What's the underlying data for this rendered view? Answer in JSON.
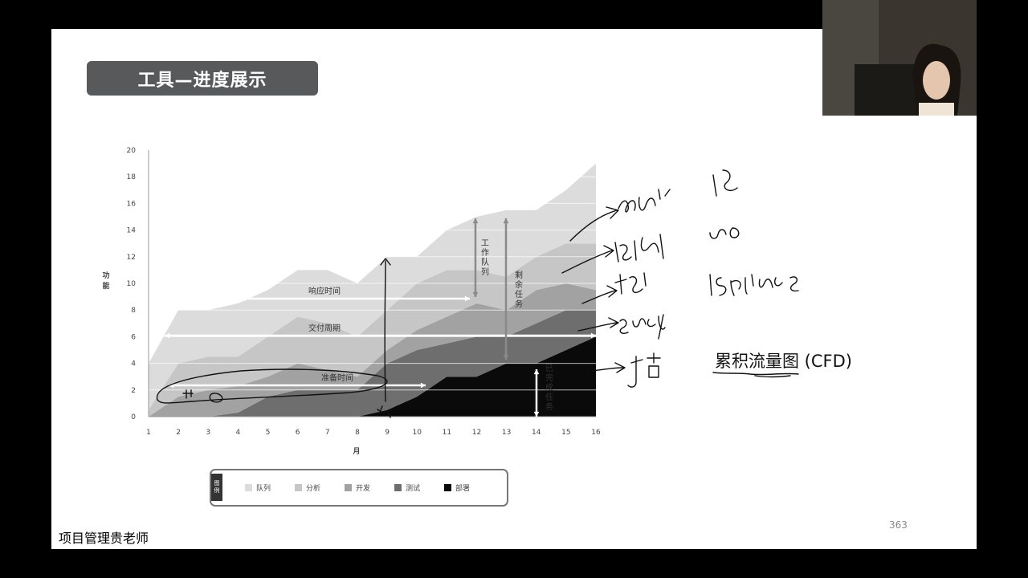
{
  "slide": {
    "title": "工具—进度展示",
    "cfd_label": "累积流量图 (CFD)",
    "page_number": "363",
    "footer": "项目管理贵老师"
  },
  "chart_data": {
    "type": "area",
    "stacked": true,
    "x": [
      1,
      2,
      3,
      4,
      5,
      6,
      7,
      8,
      9,
      10,
      11,
      12,
      13,
      14,
      15,
      16
    ],
    "xlabel": "月",
    "ylabel": "功能",
    "ylim": [
      0,
      20
    ],
    "yticks": [
      0,
      2,
      4,
      6,
      8,
      10,
      12,
      14,
      16,
      18,
      20
    ],
    "grid": true,
    "series": [
      {
        "name": "部署",
        "color": "#0a0a0a",
        "values": [
          0,
          0,
          0,
          0,
          0,
          0,
          0,
          0,
          0.5,
          1.5,
          3,
          3,
          4,
          4,
          5,
          6
        ]
      },
      {
        "name": "测试",
        "color": "#6e6e6e",
        "values": [
          0,
          0,
          0,
          0.3,
          1.5,
          2,
          2,
          2,
          3.5,
          3.5,
          2.5,
          3,
          2,
          3,
          3,
          2
        ]
      },
      {
        "name": "开发",
        "color": "#a2a2a2",
        "values": [
          0,
          1.5,
          2,
          2,
          1.5,
          2,
          1.5,
          1,
          1,
          1.5,
          2,
          2.5,
          2,
          2.5,
          2,
          1.5
        ]
      },
      {
        "name": "分析",
        "color": "#c6c6c6",
        "values": [
          0.5,
          2.5,
          2.5,
          2.2,
          3,
          3.5,
          3.5,
          3,
          3,
          3.5,
          3.5,
          2.5,
          2.5,
          2.5,
          3,
          3.5
        ]
      },
      {
        "name": "队列",
        "color": "#dcdcdc",
        "values": [
          3.5,
          4,
          3.5,
          4,
          3.5,
          3.5,
          4,
          4,
          4,
          2,
          3,
          4,
          5,
          3.5,
          4,
          6
        ]
      }
    ],
    "legend": {
      "position": "bottom",
      "title": "图例"
    },
    "annotations": [
      "响应时间",
      "交付周期",
      "工作队列",
      "剩余任务",
      "已完成任务",
      "准备时间"
    ]
  }
}
